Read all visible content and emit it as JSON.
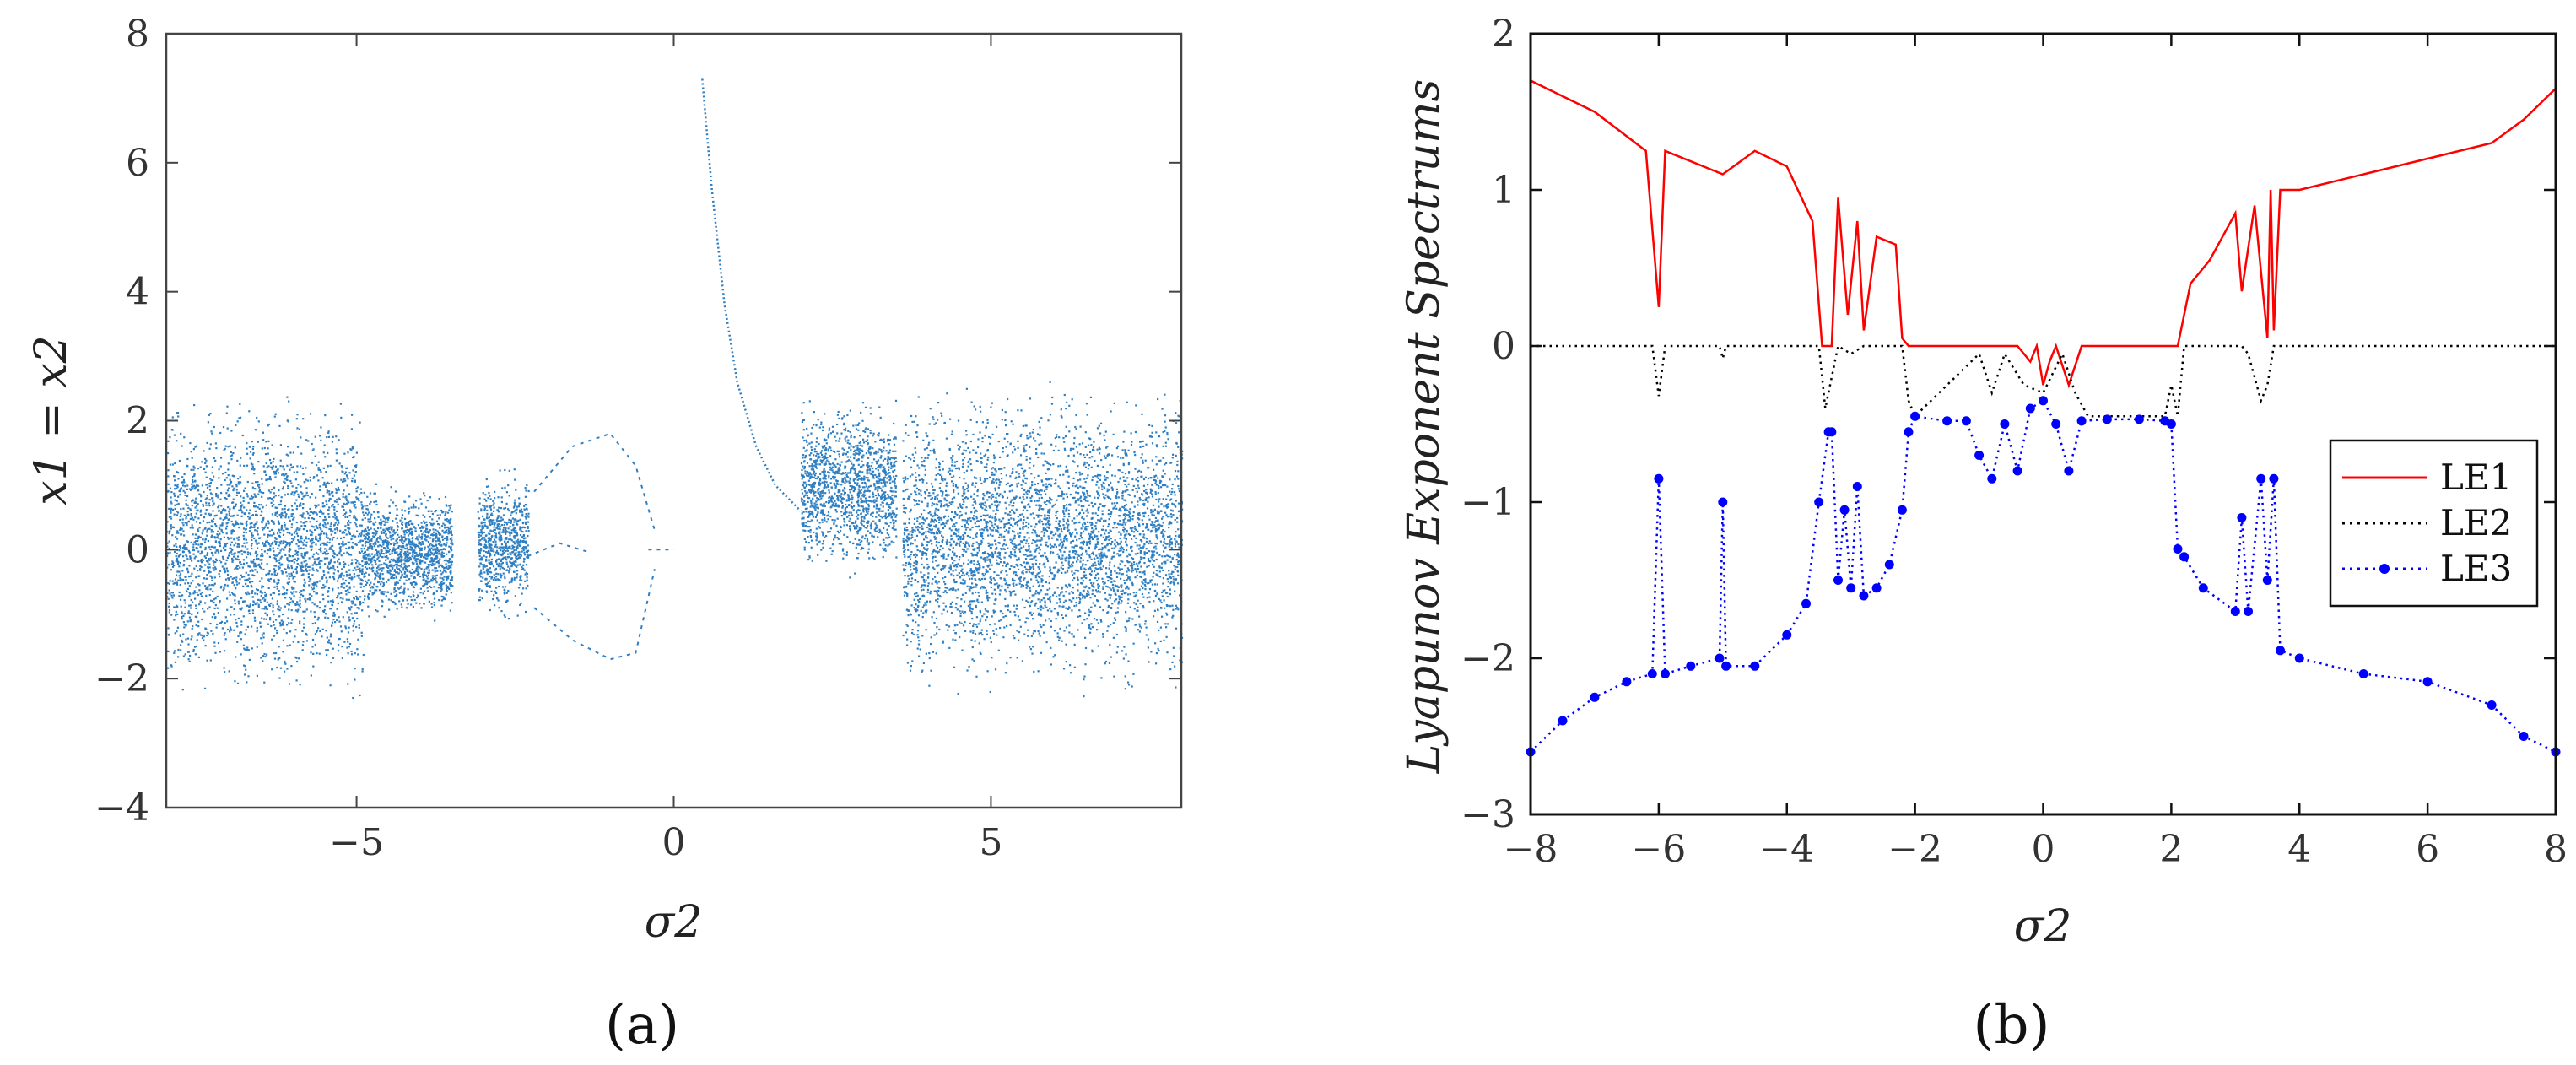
{
  "chart_data": [
    {
      "type": "scatter",
      "panel_label": "(a)",
      "title": "",
      "xlabel": "σ2",
      "ylabel": "x1 = x2",
      "xlim": [
        -8,
        8
      ],
      "ylim": [
        -4,
        8
      ],
      "xticks": [
        -5,
        0,
        5
      ],
      "yticks": [
        -4,
        -2,
        0,
        2,
        4,
        6,
        8
      ],
      "xtick_labels": [
        "−5",
        "0",
        "5"
      ],
      "ytick_labels": [
        "−4",
        "−2",
        "0",
        "2",
        "4",
        "6",
        "8"
      ],
      "color": "#2f7fc2",
      "description_regions": [
        {
          "x": [
            -8,
            -4.9
          ],
          "y_min": -2.5,
          "y_max": 2.6,
          "kind": "chaotic-dense"
        },
        {
          "x": [
            -4.9,
            -3.5
          ],
          "y_min": -1.2,
          "y_max": 1.1,
          "kind": "chaotic-dense"
        },
        {
          "x": [
            -3.1,
            -2.3
          ],
          "y_min": -1.2,
          "y_max": 1.4,
          "kind": "chaotic-dense"
        },
        {
          "x": [
            2.0,
            3.5
          ],
          "y_min": -0.5,
          "y_max": 2.5,
          "kind": "chaotic-dense"
        },
        {
          "x": [
            3.6,
            8
          ],
          "y_min": -2.4,
          "y_max": 2.8,
          "kind": "chaotic-dense"
        }
      ],
      "branch_curve": {
        "x": [
          0.45,
          0.6,
          0.8,
          1.0,
          1.3,
          1.6,
          2.0
        ],
        "y": [
          7.3,
          5.6,
          3.8,
          2.6,
          1.6,
          1.0,
          0.6
        ]
      }
    },
    {
      "type": "line",
      "panel_label": "(b)",
      "title": "",
      "xlabel": "σ2",
      "ylabel": "Lyapunov Exponent Spectrums",
      "xlim": [
        -8,
        8
      ],
      "ylim": [
        -3,
        2
      ],
      "xticks": [
        -8,
        -6,
        -4,
        -2,
        0,
        2,
        4,
        6,
        8
      ],
      "yticks": [
        -3,
        -2,
        -1,
        0,
        1,
        2
      ],
      "xtick_labels": [
        "−8",
        "−6",
        "−4",
        "−2",
        "0",
        "2",
        "4",
        "6",
        "8"
      ],
      "ytick_labels": [
        "−3",
        "−2",
        "−1",
        "0",
        "1",
        "2"
      ],
      "legend_position": "right-middle",
      "series": [
        {
          "name": "LE1",
          "color": "#ff0000",
          "style": "solid",
          "x": [
            -8,
            -7,
            -6.2,
            -6.0,
            -5.9,
            -5.0,
            -4.5,
            -4.0,
            -3.6,
            -3.45,
            -3.3,
            -3.2,
            -3.05,
            -2.9,
            -2.8,
            -2.6,
            -2.3,
            -2.2,
            -2.1,
            -0.4,
            -0.2,
            -0.1,
            0.0,
            0.1,
            0.2,
            0.4,
            0.6,
            2.0,
            2.1,
            2.3,
            2.6,
            3.0,
            3.1,
            3.3,
            3.5,
            3.55,
            3.6,
            3.7,
            4.0,
            5.0,
            6.0,
            7.0,
            7.5,
            8.0
          ],
          "y": [
            1.7,
            1.5,
            1.25,
            0.25,
            1.25,
            1.1,
            1.25,
            1.15,
            0.8,
            0.0,
            0.0,
            0.95,
            0.2,
            0.8,
            0.1,
            0.7,
            0.65,
            0.05,
            0.0,
            0.0,
            -0.1,
            0.0,
            -0.25,
            -0.1,
            0.0,
            -0.25,
            0.0,
            0.0,
            0.0,
            0.4,
            0.55,
            0.85,
            0.35,
            0.9,
            0.05,
            1.0,
            0.1,
            1.0,
            1.0,
            1.1,
            1.2,
            1.3,
            1.45,
            1.65
          ]
        },
        {
          "name": "LE2",
          "color": "#000000",
          "style": "dotted",
          "x": [
            -8,
            -6.1,
            -6.0,
            -5.9,
            -5.05,
            -5.0,
            -4.95,
            -3.5,
            -3.4,
            -3.3,
            -3.2,
            -3.0,
            -2.8,
            -2.2,
            -2.1,
            -2.0,
            -1.0,
            -0.8,
            -0.6,
            -0.3,
            0.0,
            0.3,
            0.5,
            0.7,
            1.9,
            2.0,
            2.1,
            2.2,
            3.1,
            3.2,
            3.4,
            3.5,
            3.6,
            8
          ],
          "y": [
            0.0,
            0.0,
            -0.32,
            0.0,
            0.0,
            -0.08,
            0.0,
            0.0,
            -0.4,
            -0.2,
            0.0,
            -0.05,
            0.0,
            0.0,
            -0.35,
            -0.45,
            -0.05,
            -0.3,
            -0.05,
            -0.25,
            -0.3,
            -0.05,
            -0.3,
            -0.45,
            -0.45,
            -0.25,
            -0.45,
            0.0,
            0.0,
            -0.05,
            -0.35,
            -0.25,
            0.0,
            0.0
          ]
        },
        {
          "name": "LE3",
          "color": "#0000ff",
          "style": "dotted-marker",
          "x": [
            -8,
            -7.5,
            -7,
            -6.5,
            -6.1,
            -6.0,
            -5.9,
            -5.5,
            -5.05,
            -5.0,
            -4.95,
            -4.5,
            -4.0,
            -3.7,
            -3.5,
            -3.35,
            -3.3,
            -3.2,
            -3.1,
            -3.0,
            -2.9,
            -2.8,
            -2.6,
            -2.4,
            -2.2,
            -2.1,
            -2.0,
            -1.5,
            -1.2,
            -1.0,
            -0.8,
            -0.6,
            -0.4,
            -0.2,
            0.0,
            0.2,
            0.4,
            0.6,
            1.0,
            1.5,
            1.9,
            2.0,
            2.1,
            2.2,
            2.5,
            3.0,
            3.1,
            3.2,
            3.4,
            3.5,
            3.6,
            3.7,
            4.0,
            5.0,
            6.0,
            7.0,
            7.5,
            8.0
          ],
          "y": [
            -2.6,
            -2.4,
            -2.25,
            -2.15,
            -2.1,
            -0.85,
            -2.1,
            -2.05,
            -2.0,
            -1.0,
            -2.05,
            -2.05,
            -1.85,
            -1.65,
            -1.0,
            -0.55,
            -0.55,
            -1.5,
            -1.05,
            -1.55,
            -0.9,
            -1.6,
            -1.55,
            -1.4,
            -1.05,
            -0.55,
            -0.45,
            -0.48,
            -0.48,
            -0.7,
            -0.85,
            -0.5,
            -0.8,
            -0.4,
            -0.35,
            -0.5,
            -0.8,
            -0.48,
            -0.47,
            -0.47,
            -0.48,
            -0.5,
            -1.3,
            -1.35,
            -1.55,
            -1.7,
            -1.1,
            -1.7,
            -0.85,
            -1.5,
            -0.85,
            -1.95,
            -2.0,
            -2.1,
            -2.15,
            -2.3,
            -2.5,
            -2.6
          ]
        }
      ]
    }
  ]
}
